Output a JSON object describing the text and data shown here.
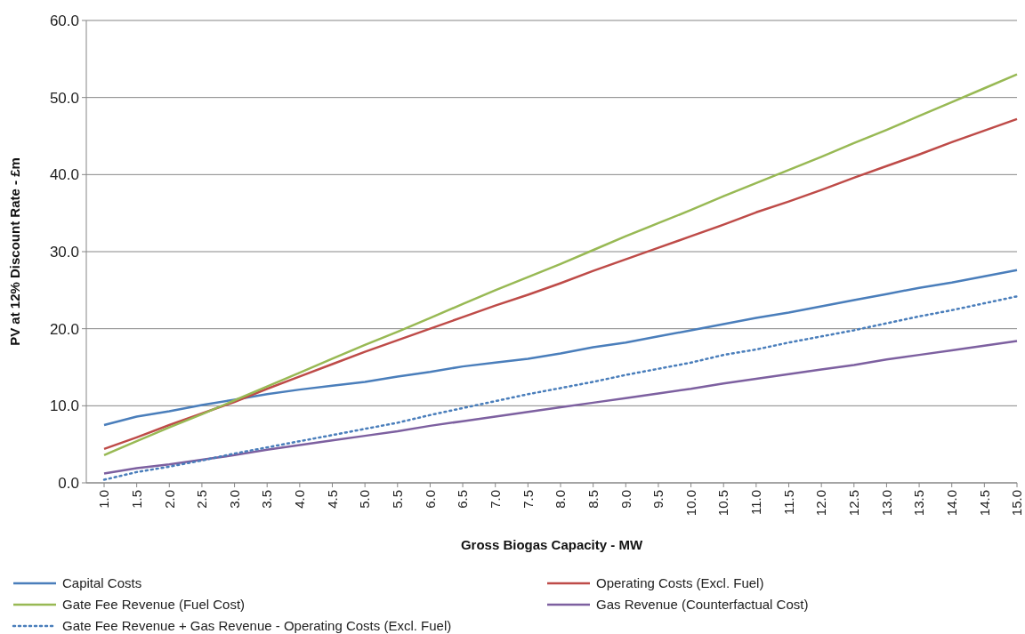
{
  "chart_data": {
    "type": "line",
    "xlabel": "Gross Biogas Capacity - MW",
    "ylabel": "PV at 12% Discount Rate - £m",
    "categories": [
      "1.0",
      "1.5",
      "2.0",
      "2.5",
      "3.0",
      "3.5",
      "4.0",
      "4.5",
      "5.0",
      "5.5",
      "6.0",
      "6.5",
      "7.0",
      "7.5",
      "8.0",
      "8.5",
      "9.0",
      "9.5",
      "10.0",
      "10.5",
      "11.0",
      "11.5",
      "12.0",
      "12.5",
      "13.0",
      "13.5",
      "14.0",
      "14.5",
      "15.0"
    ],
    "series": [
      {
        "name": "Capital Costs",
        "color": "#4a7ebb",
        "line_style": "solid",
        "values": [
          7.5,
          8.6,
          9.3,
          10.1,
          10.8,
          11.5,
          12.1,
          12.6,
          13.1,
          13.8,
          14.4,
          15.1,
          15.6,
          16.1,
          16.8,
          17.6,
          18.2,
          19.0,
          19.8,
          20.6,
          21.4,
          22.1,
          22.9,
          23.7,
          24.5,
          25.3,
          26.0,
          26.8,
          27.6
        ]
      },
      {
        "name": "Operating Costs (Excl. Fuel)",
        "color": "#be4b48",
        "line_style": "solid",
        "values": [
          4.4,
          5.9,
          7.5,
          9.0,
          10.5,
          12.2,
          13.8,
          15.4,
          17.0,
          18.5,
          20.0,
          21.5,
          23.0,
          24.4,
          25.9,
          27.5,
          29.0,
          30.5,
          32.0,
          33.5,
          35.1,
          36.5,
          38.0,
          39.6,
          41.1,
          42.6,
          44.2,
          45.7,
          47.2
        ]
      },
      {
        "name": "Gate Fee Revenue (Fuel Cost)",
        "color": "#98b954",
        "line_style": "solid",
        "values": [
          3.6,
          5.4,
          7.2,
          8.9,
          10.7,
          12.5,
          14.3,
          16.1,
          17.9,
          19.6,
          21.4,
          23.2,
          25.0,
          26.7,
          28.4,
          30.2,
          32.0,
          33.7,
          35.4,
          37.2,
          38.9,
          40.6,
          42.3,
          44.1,
          45.8,
          47.6,
          49.4,
          51.2,
          53.0
        ]
      },
      {
        "name": "Gas Revenue (Counterfactual Cost)",
        "color": "#7d60a0",
        "line_style": "solid",
        "values": [
          1.2,
          1.9,
          2.4,
          3.0,
          3.6,
          4.3,
          4.9,
          5.5,
          6.1,
          6.7,
          7.4,
          8.0,
          8.6,
          9.2,
          9.8,
          10.4,
          11.0,
          11.6,
          12.2,
          12.9,
          13.5,
          14.1,
          14.7,
          15.3,
          16.0,
          16.6,
          17.2,
          17.8,
          18.4
        ]
      },
      {
        "name": "Gate Fee Revenue + Gas Revenue - Operating Costs (Excl. Fuel)",
        "color": "#4a7ebb",
        "line_style": "dotted",
        "values": [
          0.4,
          1.4,
          2.1,
          2.9,
          3.8,
          4.6,
          5.4,
          6.2,
          7.0,
          7.8,
          8.8,
          9.7,
          10.6,
          11.5,
          12.3,
          13.1,
          14.0,
          14.8,
          15.6,
          16.6,
          17.3,
          18.2,
          19.0,
          19.8,
          20.7,
          21.6,
          22.4,
          23.3,
          24.2
        ]
      }
    ],
    "ylim": [
      0,
      60
    ],
    "yticks": [
      {
        "value": 0,
        "label": "0.0"
      },
      {
        "value": 10,
        "label": "10.0"
      },
      {
        "value": 20,
        "label": "20.0"
      },
      {
        "value": 30,
        "label": "30.0"
      },
      {
        "value": 40,
        "label": "40.0"
      },
      {
        "value": 50,
        "label": "50.0"
      },
      {
        "value": 60,
        "label": "60.0"
      }
    ],
    "grid": "y",
    "legend": "bottom"
  }
}
